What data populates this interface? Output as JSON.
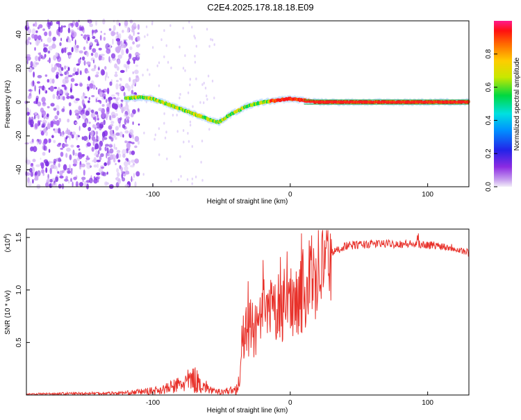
{
  "title": "C2E4.2025.178.18.18.E09",
  "chart_data": [
    {
      "type": "heatmap",
      "xlabel": "Height of straight line (km)",
      "ylabel": "Frequency (Hz)",
      "xlim": [
        -192,
        130
      ],
      "ylim": [
        -50,
        48
      ],
      "x_ticks": [
        -100,
        0,
        100
      ],
      "y_ticks": [
        -40,
        -20,
        0,
        20,
        40
      ],
      "colorbar": {
        "label": "Normalized spectral amplitude",
        "range": [
          0,
          1
        ],
        "ticks": [
          "0.0",
          "0.2",
          "0.4",
          "0.6",
          "0.8"
        ],
        "tick_values": [
          0.0,
          0.2,
          0.4,
          0.6,
          0.8
        ]
      },
      "ridge": {
        "x": [
          -120,
          -110,
          -100,
          -90,
          -80,
          -70,
          -60,
          -52,
          -45,
          -38,
          -30,
          -20,
          -10,
          0,
          10,
          20,
          40,
          60,
          80,
          100,
          120,
          130
        ],
        "y": [
          2,
          3,
          2,
          -1,
          -4,
          -7,
          -10,
          -12,
          -8,
          -5,
          -2,
          0,
          1,
          2,
          1,
          0,
          0,
          0,
          0,
          0,
          0,
          0
        ]
      },
      "noise_region_x": [
        -192,
        -110
      ]
    },
    {
      "type": "line",
      "xlabel": "Height of straight line (km)",
      "ylabel": "SNR (10 * v/v)",
      "scale_label": "(x10",
      "scale_exp": "4",
      "scale_close": ")",
      "xlim": [
        -192,
        130
      ],
      "ylim": [
        0,
        1.58
      ],
      "x_ticks": [
        -100,
        0,
        100
      ],
      "y_ticks": [
        "0.5",
        "1.0",
        "1.5"
      ],
      "y_tick_values": [
        0.5,
        1.0,
        1.5
      ],
      "line_color": "#e8312a",
      "envelope": {
        "x": [
          -192,
          -150,
          -120,
          -100,
          -90,
          -80,
          -70,
          -62,
          -55,
          -45,
          -40,
          -37,
          -35,
          -30,
          -25,
          -20,
          -10,
          0,
          10,
          20,
          30,
          40,
          60,
          80,
          100,
          110,
          120,
          130
        ],
        "y": [
          0.01,
          0.015,
          0.02,
          0.04,
          0.06,
          0.1,
          0.15,
          0.08,
          0.03,
          0.04,
          0.05,
          0.12,
          0.5,
          0.65,
          0.6,
          0.72,
          0.82,
          0.9,
          1.0,
          1.2,
          1.35,
          1.42,
          1.44,
          1.44,
          1.43,
          1.42,
          1.4,
          1.35
        ]
      }
    }
  ]
}
